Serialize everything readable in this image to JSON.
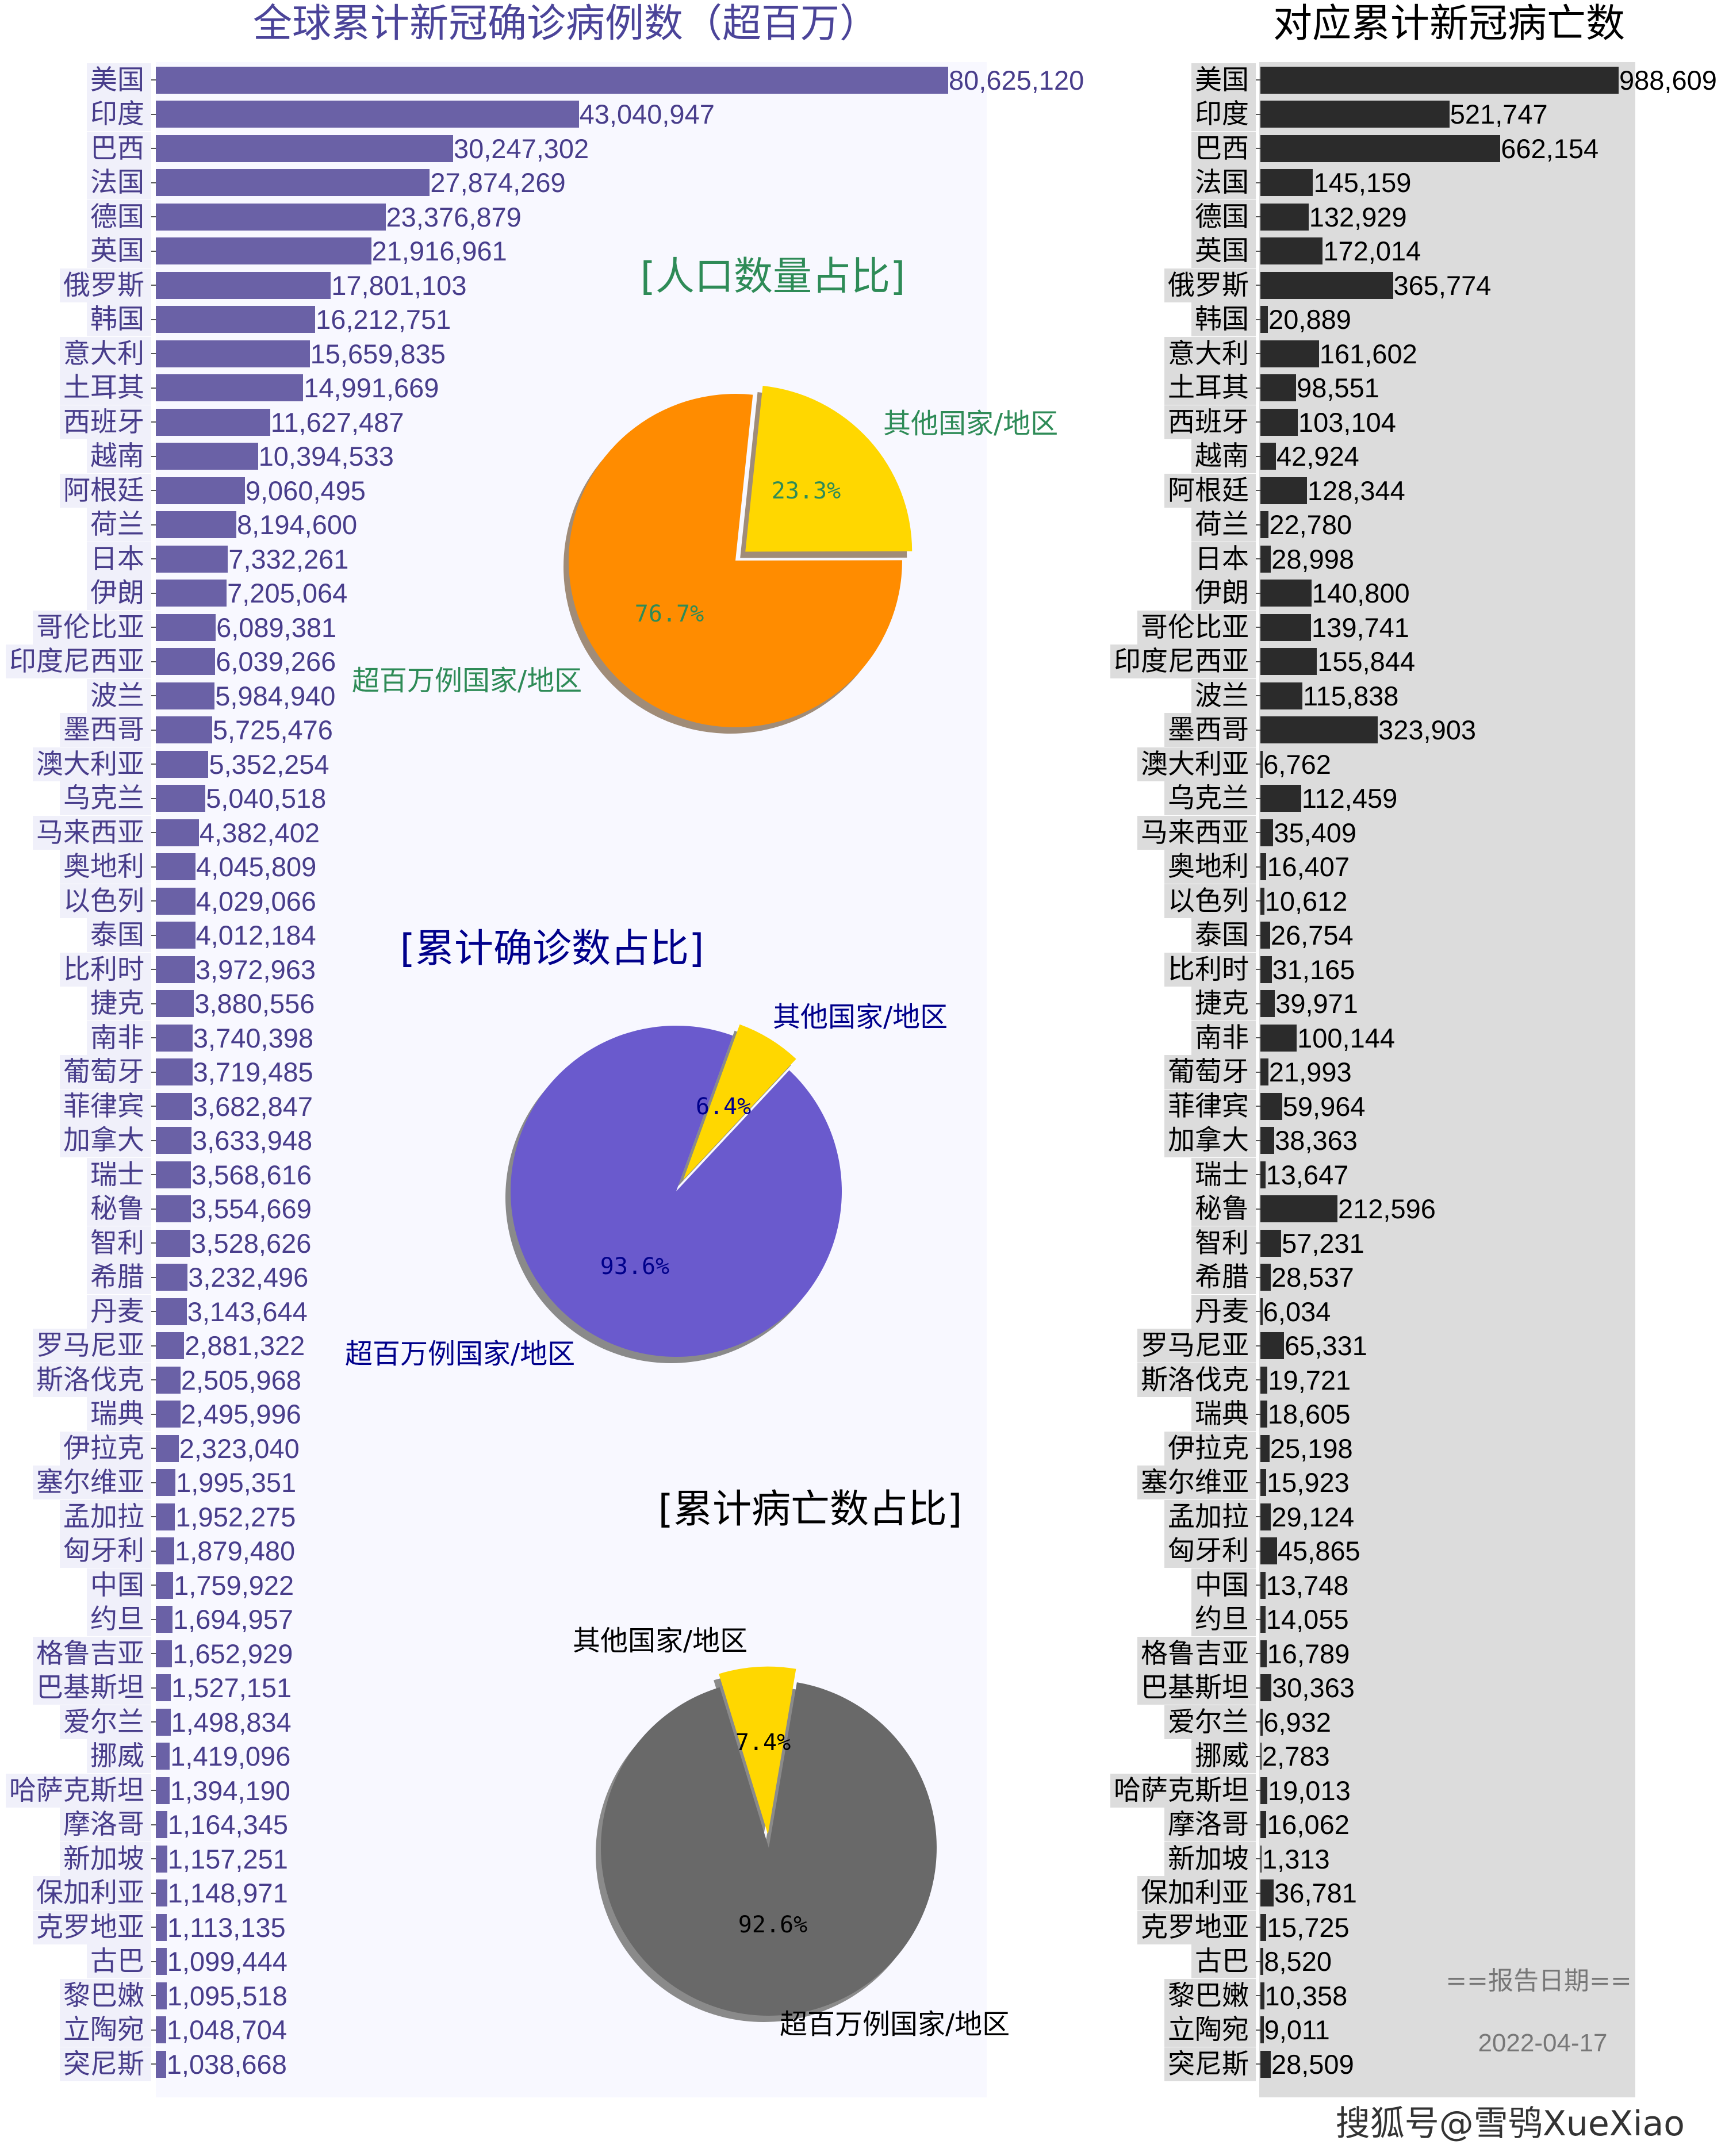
{
  "chart_data": [
    {
      "type": "bar",
      "orientation": "horizontal",
      "title": "全球累计新冠确诊病例数（超百万）",
      "categories": [
        "美国",
        "印度",
        "巴西",
        "法国",
        "德国",
        "英国",
        "俄罗斯",
        "韩国",
        "意大利",
        "土耳其",
        "西班牙",
        "越南",
        "阿根廷",
        "荷兰",
        "日本",
        "伊朗",
        "哥伦比亚",
        "印度尼西亚",
        "波兰",
        "墨西哥",
        "澳大利亚",
        "乌克兰",
        "马来西亚",
        "奥地利",
        "以色列",
        "泰国",
        "比利时",
        "捷克",
        "南非",
        "葡萄牙",
        "菲律宾",
        "加拿大",
        "瑞士",
        "秘鲁",
        "智利",
        "希腊",
        "丹麦",
        "罗马尼亚",
        "斯洛伐克",
        "瑞典",
        "伊拉克",
        "塞尔维亚",
        "孟加拉",
        "匈牙利",
        "中国",
        "约旦",
        "格鲁吉亚",
        "巴基斯坦",
        "爱尔兰",
        "挪威",
        "哈萨克斯坦",
        "摩洛哥",
        "新加坡",
        "保加利亚",
        "克罗地亚",
        "古巴",
        "黎巴嫩",
        "立陶宛",
        "突尼斯"
      ],
      "values": [
        80625120,
        43040947,
        30247302,
        27874269,
        23376879,
        21916961,
        17801103,
        16212751,
        15659835,
        14991669,
        11627487,
        10394533,
        9060495,
        8194600,
        7332261,
        7205064,
        6089381,
        6039266,
        5984940,
        5725476,
        5352254,
        5040518,
        4382402,
        4045809,
        4029066,
        4012184,
        3972963,
        3880556,
        3740398,
        3719485,
        3682847,
        3633948,
        3568616,
        3554669,
        3528626,
        3232496,
        3143644,
        2881322,
        2505968,
        2495996,
        2323040,
        1995351,
        1952275,
        1879480,
        1759922,
        1694957,
        1652929,
        1527151,
        1498834,
        1419096,
        1394190,
        1164345,
        1157251,
        1148971,
        1113135,
        1099444,
        1095518,
        1048704,
        1038668
      ],
      "labels": [
        "80,625,120",
        "43,040,947",
        "30,247,302",
        "27,874,269",
        "23,376,879",
        "21,916,961",
        "17,801,103",
        "16,212,751",
        "15,659,835",
        "14,991,669",
        "11,627,487",
        "10,394,533",
        "9,060,495",
        "8,194,600",
        "7,332,261",
        "7,205,064",
        "6,089,381",
        "6,039,266",
        "5,984,940",
        "5,725,476",
        "5,352,254",
        "5,040,518",
        "4,382,402",
        "4,045,809",
        "4,029,066",
        "4,012,184",
        "3,972,963",
        "3,880,556",
        "3,740,398",
        "3,719,485",
        "3,682,847",
        "3,633,948",
        "3,568,616",
        "3,554,669",
        "3,528,626",
        "3,232,496",
        "3,143,644",
        "2,881,322",
        "2,505,968",
        "2,495,996",
        "2,323,040",
        "1,995,351",
        "1,952,275",
        "1,879,480",
        "1,759,922",
        "1,694,957",
        "1,652,929",
        "1,527,151",
        "1,498,834",
        "1,419,096",
        "1,394,190",
        "1,164,345",
        "1,157,251",
        "1,148,971",
        "1,113,135",
        "1,099,444",
        "1,095,518",
        "1,048,704",
        "1,038,668"
      ],
      "xlim": [
        0,
        80625120
      ],
      "grid": false,
      "colors": {
        "bar": "#6a61a6",
        "text": "#483d8b",
        "background": "#f8f8ff",
        "title": "#4b4499"
      }
    },
    {
      "type": "bar",
      "orientation": "horizontal",
      "title": "对应累计新冠病亡数",
      "values": [
        988609,
        521747,
        662154,
        145159,
        132929,
        172014,
        365774,
        20889,
        161602,
        98551,
        103104,
        42924,
        128344,
        22780,
        28998,
        140800,
        139741,
        155844,
        115838,
        323903,
        6762,
        112459,
        35409,
        16407,
        10612,
        26754,
        31165,
        39971,
        100144,
        21993,
        59964,
        38363,
        13647,
        212596,
        57231,
        28537,
        6034,
        65331,
        19721,
        18605,
        25198,
        15923,
        29124,
        45865,
        13748,
        14055,
        16789,
        30363,
        6932,
        2783,
        19013,
        16062,
        1313,
        36781,
        15725,
        8520,
        10358,
        9011,
        28509
      ],
      "labels": [
        "988,609",
        "521,747",
        "662,154",
        "145,159",
        "132,929",
        "172,014",
        "365,774",
        "20,889",
        "161,602",
        "98,551",
        "103,104",
        "42,924",
        "128,344",
        "22,780",
        "28,998",
        "140,800",
        "139,741",
        "155,844",
        "115,838",
        "323,903",
        "6,762",
        "112,459",
        "35,409",
        "16,407",
        "10,612",
        "26,754",
        "31,165",
        "39,971",
        "100,144",
        "21,993",
        "59,964",
        "38,363",
        "13,647",
        "212,596",
        "57,231",
        "28,537",
        "6,034",
        "65,331",
        "19,721",
        "18,605",
        "25,198",
        "15,923",
        "29,124",
        "45,865",
        "13,748",
        "14,055",
        "16,789",
        "30,363",
        "6,932",
        "2,783",
        "19,013",
        "16,062",
        "1,313",
        "36,781",
        "15,725",
        "8,520",
        "10,358",
        "9,011",
        "28,509"
      ],
      "xlim": [
        0,
        988609
      ],
      "grid": false,
      "colors": {
        "bar": "#2b2b2b",
        "text": "#000000",
        "background": "#dcdcdc",
        "title": "#000000"
      }
    },
    {
      "type": "pie",
      "title": "[人口数量占比]",
      "slices": [
        {
          "label": "超百万例国家/地区",
          "value": 76.7,
          "pct": "76.7%",
          "color": "#ff8c00"
        },
        {
          "label": "其他国家/地区",
          "value": 23.3,
          "pct": "23.3%",
          "color": "#ffd700",
          "exploded": true
        }
      ],
      "text_color": "#2e8b57",
      "shadow": true
    },
    {
      "type": "pie",
      "title": "[累计确诊数占比]",
      "slices": [
        {
          "label": "超百万例国家/地区",
          "value": 93.6,
          "pct": "93.6%",
          "color": "#6a5acd"
        },
        {
          "label": "其他国家/地区",
          "value": 6.4,
          "pct": "6.4%",
          "color": "#ffd700",
          "exploded": true
        }
      ],
      "text_color": "#00008b",
      "shadow": true
    },
    {
      "type": "pie",
      "title": "[累计病亡数占比]",
      "slices": [
        {
          "label": "超百万例国家/地区",
          "value": 92.6,
          "pct": "92.6%",
          "color": "#696969"
        },
        {
          "label": "其他国家/地区",
          "value": 7.4,
          "pct": "7.4%",
          "color": "#ffd700",
          "exploded": true
        }
      ],
      "text_color": "#000000",
      "shadow": true
    }
  ],
  "report": {
    "heading": "==报告日期==",
    "date": "2022-04-17"
  },
  "watermark": "搜狐号@雪鸮XueXiao"
}
